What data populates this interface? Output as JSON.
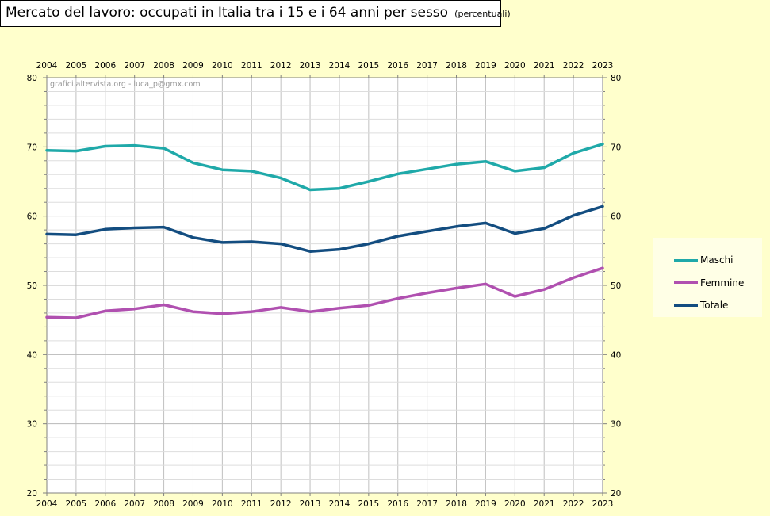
{
  "title": {
    "main": "Mercato del lavoro: occupati in Italia tra i 15 e i 64 anni per sesso",
    "sub": "(percentuali)"
  },
  "chart_data": {
    "type": "line",
    "title": "Mercato del lavoro: occupati in Italia tra i 15 e i 64 anni per sesso (percentuali)",
    "watermark": "grafici.altervista.org - luca_p@gmx.com",
    "x": [
      "2004",
      "2005",
      "2006",
      "2007",
      "2008",
      "2009",
      "2010",
      "2011",
      "2012",
      "2013",
      "2014",
      "2015",
      "2016",
      "2017",
      "2018",
      "2019",
      "2020",
      "2021",
      "2022",
      "2023"
    ],
    "ylim": [
      20,
      80
    ],
    "yticks": [
      20,
      30,
      40,
      50,
      60,
      70,
      80
    ],
    "grid": true,
    "legend_position": "right",
    "series": [
      {
        "name": "Maschi",
        "color": "#1fa9a9",
        "values": [
          69.5,
          69.4,
          70.1,
          70.2,
          69.8,
          67.7,
          66.7,
          66.5,
          65.5,
          63.8,
          64.0,
          65.0,
          66.1,
          66.8,
          67.5,
          67.9,
          66.5,
          67.0,
          69.1,
          70.4
        ]
      },
      {
        "name": "Femmine",
        "color": "#b050b0",
        "values": [
          45.4,
          45.3,
          46.3,
          46.6,
          47.2,
          46.2,
          45.9,
          46.2,
          46.8,
          46.2,
          46.7,
          47.1,
          48.1,
          48.9,
          49.6,
          50.2,
          48.4,
          49.4,
          51.1,
          52.5
        ]
      },
      {
        "name": "Totale",
        "color": "#134d80",
        "values": [
          57.4,
          57.3,
          58.1,
          58.3,
          58.4,
          56.9,
          56.2,
          56.3,
          56.0,
          54.9,
          55.2,
          56.0,
          57.1,
          57.8,
          58.5,
          59.0,
          57.5,
          58.2,
          60.1,
          61.4
        ]
      }
    ]
  }
}
